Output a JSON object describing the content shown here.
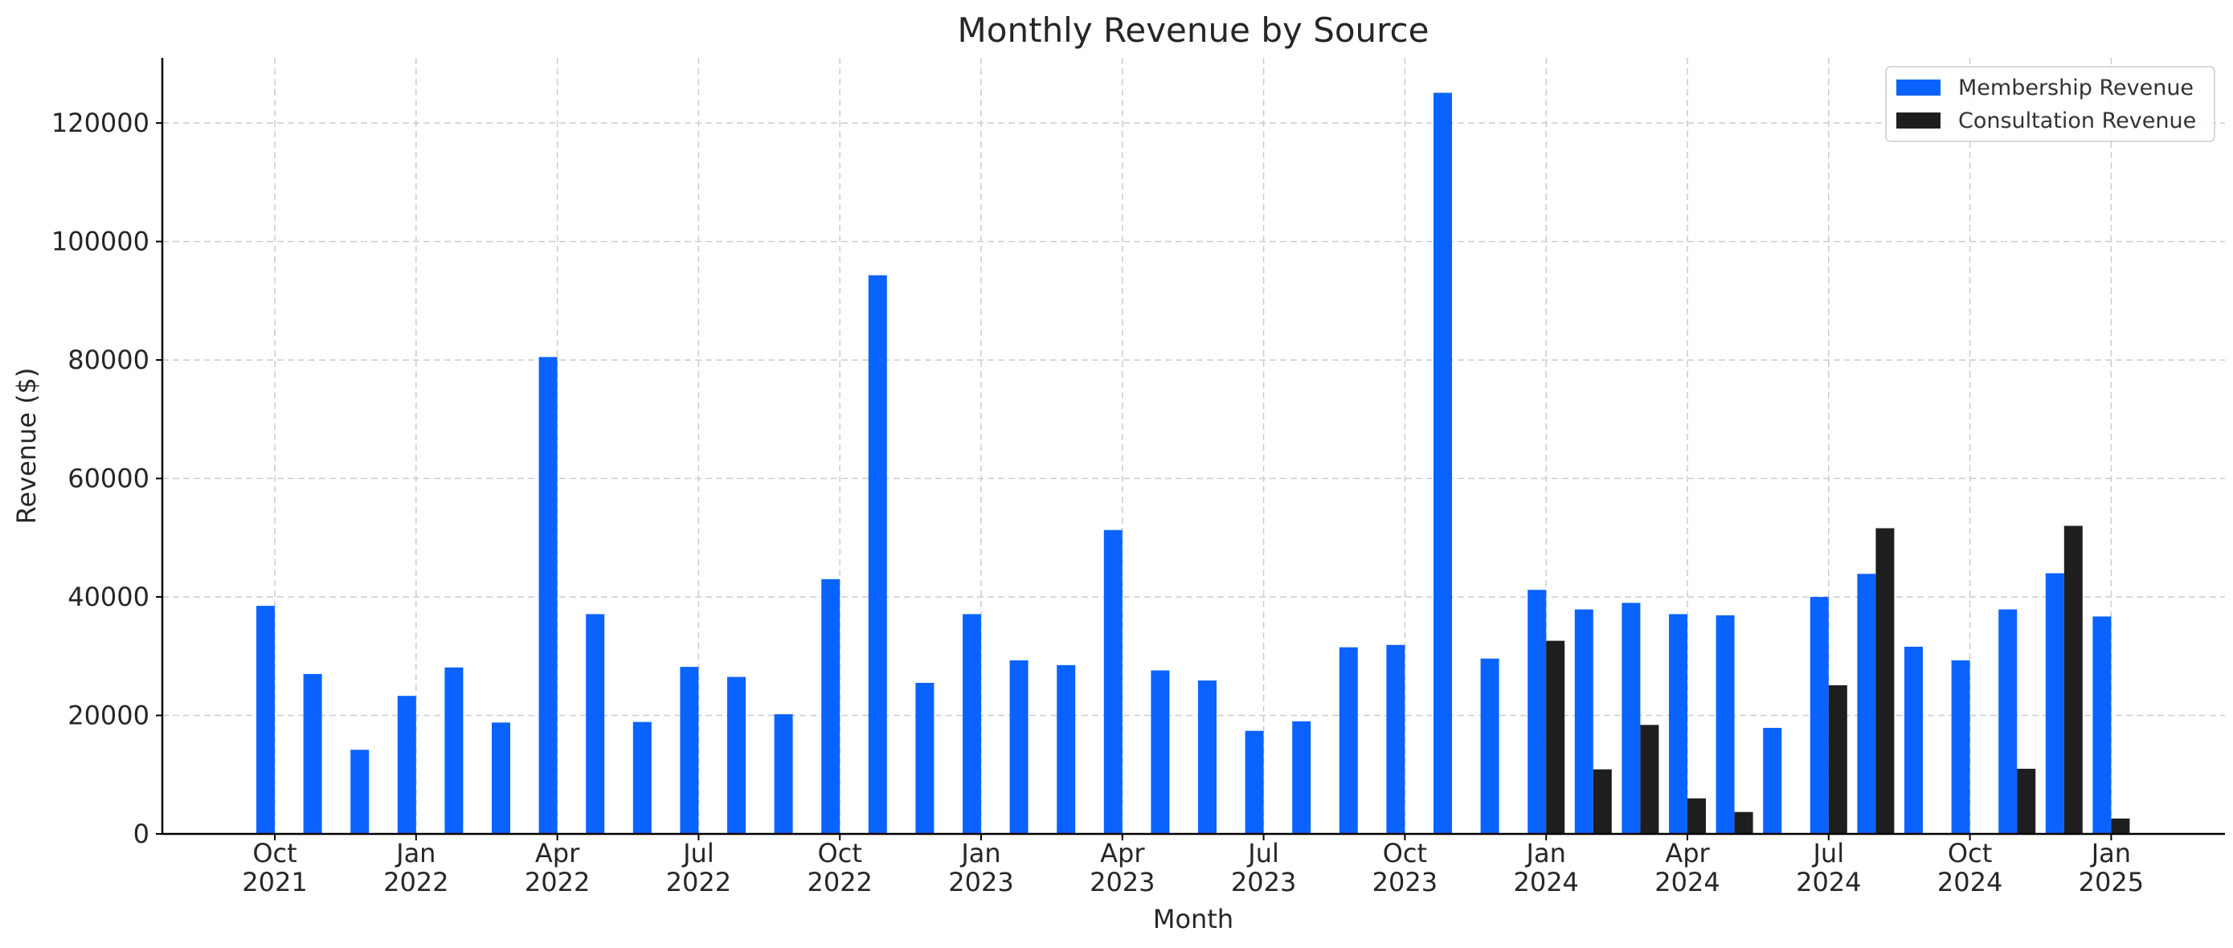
{
  "chart_data": {
    "type": "bar",
    "title": "Monthly Revenue by Source",
    "xlabel": "Month",
    "ylabel": "Revenue ($)",
    "categories": [
      "2021-10",
      "2021-11",
      "2021-12",
      "2022-01",
      "2022-02",
      "2022-03",
      "2022-04",
      "2022-05",
      "2022-06",
      "2022-07",
      "2022-08",
      "2022-09",
      "2022-10",
      "2022-11",
      "2022-12",
      "2023-01",
      "2023-02",
      "2023-03",
      "2023-04",
      "2023-05",
      "2023-06",
      "2023-07",
      "2023-08",
      "2023-09",
      "2023-10",
      "2023-11",
      "2023-12",
      "2024-01",
      "2024-02",
      "2024-03",
      "2024-04",
      "2024-05",
      "2024-06",
      "2024-07",
      "2024-08",
      "2024-09",
      "2024-10",
      "2024-11",
      "2024-12",
      "2025-01"
    ],
    "series": [
      {
        "name": "Membership Revenue",
        "color": "#0a63ff",
        "values": [
          38500,
          27000,
          14200,
          23300,
          28100,
          18800,
          80500,
          37100,
          18900,
          28200,
          26500,
          20200,
          43000,
          94300,
          25500,
          37100,
          29300,
          28500,
          51300,
          27600,
          25900,
          17400,
          19000,
          31500,
          31900,
          125100,
          29600,
          41200,
          37900,
          39000,
          37100,
          36900,
          17900,
          40000,
          43900,
          31600,
          29300,
          37900,
          44000,
          36700
        ]
      },
      {
        "name": "Consultation Revenue",
        "color": "#1e1e1e",
        "values": [
          0,
          0,
          0,
          0,
          0,
          0,
          0,
          0,
          0,
          0,
          0,
          0,
          0,
          0,
          0,
          0,
          0,
          0,
          0,
          0,
          0,
          0,
          0,
          0,
          0,
          0,
          0,
          32600,
          10900,
          18400,
          6000,
          3700,
          0,
          25100,
          51600,
          0,
          0,
          11000,
          52000,
          2600
        ]
      }
    ],
    "x_ticks": [
      {
        "index": 0,
        "month": "Oct",
        "year": "2021"
      },
      {
        "index": 3,
        "month": "Jan",
        "year": "2022"
      },
      {
        "index": 6,
        "month": "Apr",
        "year": "2022"
      },
      {
        "index": 9,
        "month": "Jul",
        "year": "2022"
      },
      {
        "index": 12,
        "month": "Oct",
        "year": "2022"
      },
      {
        "index": 15,
        "month": "Jan",
        "year": "2023"
      },
      {
        "index": 18,
        "month": "Apr",
        "year": "2023"
      },
      {
        "index": 21,
        "month": "Jul",
        "year": "2023"
      },
      {
        "index": 24,
        "month": "Oct",
        "year": "2023"
      },
      {
        "index": 27,
        "month": "Jan",
        "year": "2024"
      },
      {
        "index": 30,
        "month": "Apr",
        "year": "2024"
      },
      {
        "index": 33,
        "month": "Jul",
        "year": "2024"
      },
      {
        "index": 36,
        "month": "Oct",
        "year": "2024"
      },
      {
        "index": 39,
        "month": "Jan",
        "year": "2025"
      }
    ],
    "y_ticks": [
      0,
      20000,
      40000,
      60000,
      80000,
      100000,
      120000
    ],
    "ylim": [
      0,
      131000
    ],
    "grid": true,
    "legend_position": "top-right"
  }
}
